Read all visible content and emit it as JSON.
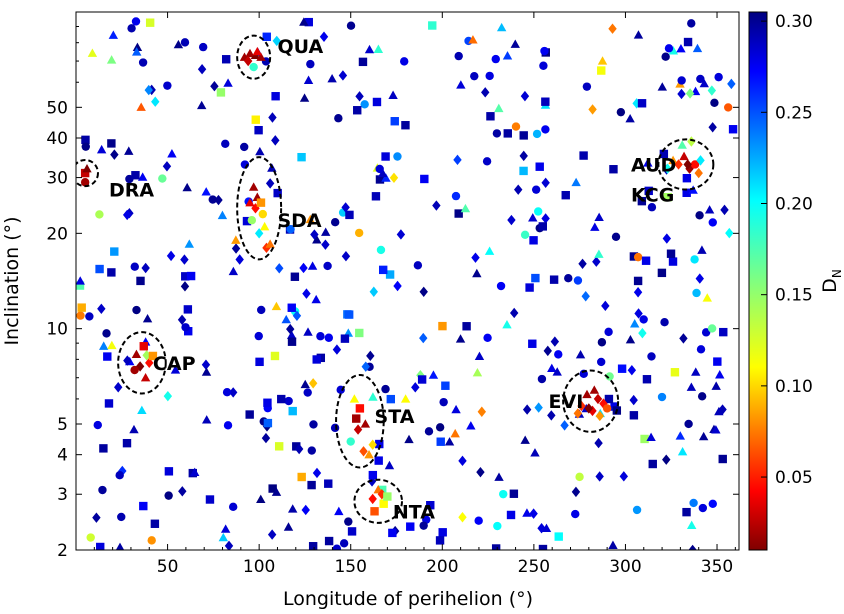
{
  "chart_data": {
    "type": "scatter",
    "xlabel": "Longitude of perihelion (°)",
    "ylabel": "Inclination (°)",
    "colorbar_label": "D_N",
    "xlim": [
      0,
      362
    ],
    "ylim_log": [
      2,
      100
    ],
    "y_scale": "log",
    "x_ticks": [
      50,
      100,
      150,
      200,
      250,
      300,
      350
    ],
    "y_ticks": [
      2,
      3,
      4,
      5,
      10,
      20,
      30,
      40,
      50
    ],
    "colorbar_range": [
      0.01,
      0.305
    ],
    "colorbar_ticks": [
      0.05,
      0.1,
      0.15,
      0.2,
      0.25,
      0.3
    ],
    "colorbar_tick_labels": [
      "0.05",
      "0.10",
      "0.15",
      "0.20",
      "0.25",
      "0.30"
    ],
    "marker_legend": [
      "triangle",
      "diamond",
      "circle",
      "square"
    ],
    "showers": [
      {
        "name": "QUA",
        "x": 97,
        "y": 72,
        "rx": 9,
        "ry_factor": 1.17
      },
      {
        "name": "DRA",
        "x": 5,
        "y": 31,
        "rx": 7,
        "ry_factor": 1.1
      },
      {
        "name": "SDA",
        "x": 100,
        "y": 24,
        "rx": 12,
        "ry_factor": 1.45
      },
      {
        "name": "CAP",
        "x": 36,
        "y": 7.8,
        "rx": 13,
        "ry_factor": 1.25
      },
      {
        "name": "STA",
        "x": 155,
        "y": 5.1,
        "rx": 13,
        "ry_factor": 1.4
      },
      {
        "name": "NTA",
        "x": 165,
        "y": 2.85,
        "rx": 13,
        "ry_factor": 1.17
      },
      {
        "name": "EVI",
        "x": 281,
        "y": 5.9,
        "rx": 15,
        "ry_factor": 1.25
      },
      {
        "name": "AUD",
        "x": 333,
        "y": 33,
        "rx": 15,
        "ry_factor": 1.2
      }
    ],
    "shower_labels": [
      {
        "text": "QUA",
        "x": 110,
        "y": 78
      },
      {
        "text": "DRA",
        "x": 18,
        "y": 27.5
      },
      {
        "text": "SDA",
        "x": 110,
        "y": 22
      },
      {
        "text": "CAP",
        "x": 42,
        "y": 7.8
      },
      {
        "text": "STA",
        "x": 163,
        "y": 5.3
      },
      {
        "text": "NTA",
        "x": 173,
        "y": 2.65
      },
      {
        "text": "EVI",
        "x": 258,
        "y": 5.9
      },
      {
        "text": "AUD",
        "x": 303,
        "y": 33
      },
      {
        "text": "KCG",
        "x": 303,
        "y": 26.5
      }
    ],
    "cluster_points": [
      {
        "x": 92,
        "y": 72,
        "d": 0.02,
        "m": "triangle"
      },
      {
        "x": 95,
        "y": 74,
        "d": 0.02,
        "m": "triangle"
      },
      {
        "x": 98,
        "y": 73,
        "d": 0.01,
        "m": "triangle"
      },
      {
        "x": 101,
        "y": 72,
        "d": 0.02,
        "m": "triangle"
      },
      {
        "x": 94,
        "y": 70,
        "d": 0.03,
        "m": "diamond"
      },
      {
        "x": 97,
        "y": 67,
        "d": 0.18,
        "m": "circle"
      },
      {
        "x": 99,
        "y": 75,
        "d": 0.04,
        "m": "triangle"
      },
      {
        "x": 5,
        "y": 31,
        "d": 0.03,
        "m": "square"
      },
      {
        "x": 6,
        "y": 32,
        "d": 0.01,
        "m": "triangle"
      },
      {
        "x": 5,
        "y": 29,
        "d": 0.02,
        "m": "circle"
      },
      {
        "x": 97,
        "y": 28,
        "d": 0.02,
        "m": "triangle"
      },
      {
        "x": 99,
        "y": 26,
        "d": 0.02,
        "m": "triangle"
      },
      {
        "x": 98,
        "y": 24,
        "d": 0.05,
        "m": "diamond"
      },
      {
        "x": 101,
        "y": 25,
        "d": 0.09,
        "m": "square"
      },
      {
        "x": 96,
        "y": 22,
        "d": 0.15,
        "m": "circle"
      },
      {
        "x": 103,
        "y": 21,
        "d": 0.12,
        "m": "triangle"
      },
      {
        "x": 100,
        "y": 20,
        "d": 0.2,
        "m": "diamond"
      },
      {
        "x": 104,
        "y": 18,
        "d": 0.06,
        "m": "diamond"
      },
      {
        "x": 106,
        "y": 18.5,
        "d": 0.08,
        "m": "triangle"
      },
      {
        "x": 95,
        "y": 25,
        "d": 0.04,
        "m": "triangle"
      },
      {
        "x": 102,
        "y": 23,
        "d": 0.11,
        "m": "circle"
      },
      {
        "x": 33,
        "y": 8.3,
        "d": 0.02,
        "m": "triangle"
      },
      {
        "x": 35,
        "y": 7.6,
        "d": 0.01,
        "m": "diamond"
      },
      {
        "x": 38,
        "y": 7.0,
        "d": 0.03,
        "m": "triangle"
      },
      {
        "x": 37,
        "y": 8.8,
        "d": 0.04,
        "m": "square"
      },
      {
        "x": 40,
        "y": 7.8,
        "d": 0.05,
        "m": "diamond"
      },
      {
        "x": 32,
        "y": 7.4,
        "d": 0.02,
        "m": "circle"
      },
      {
        "x": 42,
        "y": 8.2,
        "d": 0.09,
        "m": "square"
      },
      {
        "x": 153,
        "y": 5.2,
        "d": 0.02,
        "m": "square"
      },
      {
        "x": 155,
        "y": 5.6,
        "d": 0.05,
        "m": "square"
      },
      {
        "x": 154,
        "y": 4.8,
        "d": 0.03,
        "m": "diamond"
      },
      {
        "x": 157,
        "y": 4.1,
        "d": 0.07,
        "m": "diamond"
      },
      {
        "x": 160,
        "y": 4.0,
        "d": 0.09,
        "m": "triangle"
      },
      {
        "x": 152,
        "y": 6.0,
        "d": 0.12,
        "m": "triangle"
      },
      {
        "x": 158,
        "y": 5.0,
        "d": 0.02,
        "m": "triangle"
      },
      {
        "x": 150,
        "y": 4.4,
        "d": 0.18,
        "m": "circle"
      },
      {
        "x": 162,
        "y": 4.3,
        "d": 0.11,
        "m": "diamond"
      },
      {
        "x": 162,
        "y": 2.9,
        "d": 0.05,
        "m": "diamond"
      },
      {
        "x": 165,
        "y": 3.1,
        "d": 0.08,
        "m": "triangle"
      },
      {
        "x": 168,
        "y": 2.8,
        "d": 0.12,
        "m": "square"
      },
      {
        "x": 163,
        "y": 2.65,
        "d": 0.07,
        "m": "square"
      },
      {
        "x": 167,
        "y": 3.0,
        "d": 0.06,
        "m": "diamond"
      },
      {
        "x": 170,
        "y": 2.95,
        "d": 0.15,
        "m": "square"
      },
      {
        "x": 276,
        "y": 5.7,
        "d": 0.06,
        "m": "diamond"
      },
      {
        "x": 279,
        "y": 6.2,
        "d": 0.02,
        "m": "triangle"
      },
      {
        "x": 282,
        "y": 5.5,
        "d": 0.04,
        "m": "diamond"
      },
      {
        "x": 285,
        "y": 6.0,
        "d": 0.03,
        "m": "diamond"
      },
      {
        "x": 288,
        "y": 5.8,
        "d": 0.05,
        "m": "diamond"
      },
      {
        "x": 274,
        "y": 5.4,
        "d": 0.08,
        "m": "diamond"
      },
      {
        "x": 280,
        "y": 5.6,
        "d": 0.01,
        "m": "diamond"
      },
      {
        "x": 290,
        "y": 5.6,
        "d": 0.07,
        "m": "circle"
      },
      {
        "x": 283,
        "y": 6.4,
        "d": 0.02,
        "m": "triangle"
      },
      {
        "x": 286,
        "y": 5.3,
        "d": 0.09,
        "m": "diamond"
      },
      {
        "x": 326,
        "y": 34,
        "d": 0.09,
        "m": "triangle"
      },
      {
        "x": 329,
        "y": 33,
        "d": 0.06,
        "m": "diamond"
      },
      {
        "x": 332,
        "y": 35,
        "d": 0.03,
        "m": "triangle"
      },
      {
        "x": 335,
        "y": 32,
        "d": 0.02,
        "m": "diamond"
      },
      {
        "x": 338,
        "y": 33,
        "d": 0.05,
        "m": "circle"
      },
      {
        "x": 341,
        "y": 34,
        "d": 0.2,
        "m": "diamond"
      },
      {
        "x": 331,
        "y": 38,
        "d": 0.17,
        "m": "triangle"
      },
      {
        "x": 336,
        "y": 39,
        "d": 0.14,
        "m": "diamond"
      },
      {
        "x": 340,
        "y": 31,
        "d": 0.08,
        "m": "diamond"
      },
      {
        "x": 323,
        "y": 32,
        "d": 0.19,
        "m": "diamond"
      },
      {
        "x": 334,
        "y": 33,
        "d": 0.01,
        "m": "diamond"
      }
    ]
  }
}
